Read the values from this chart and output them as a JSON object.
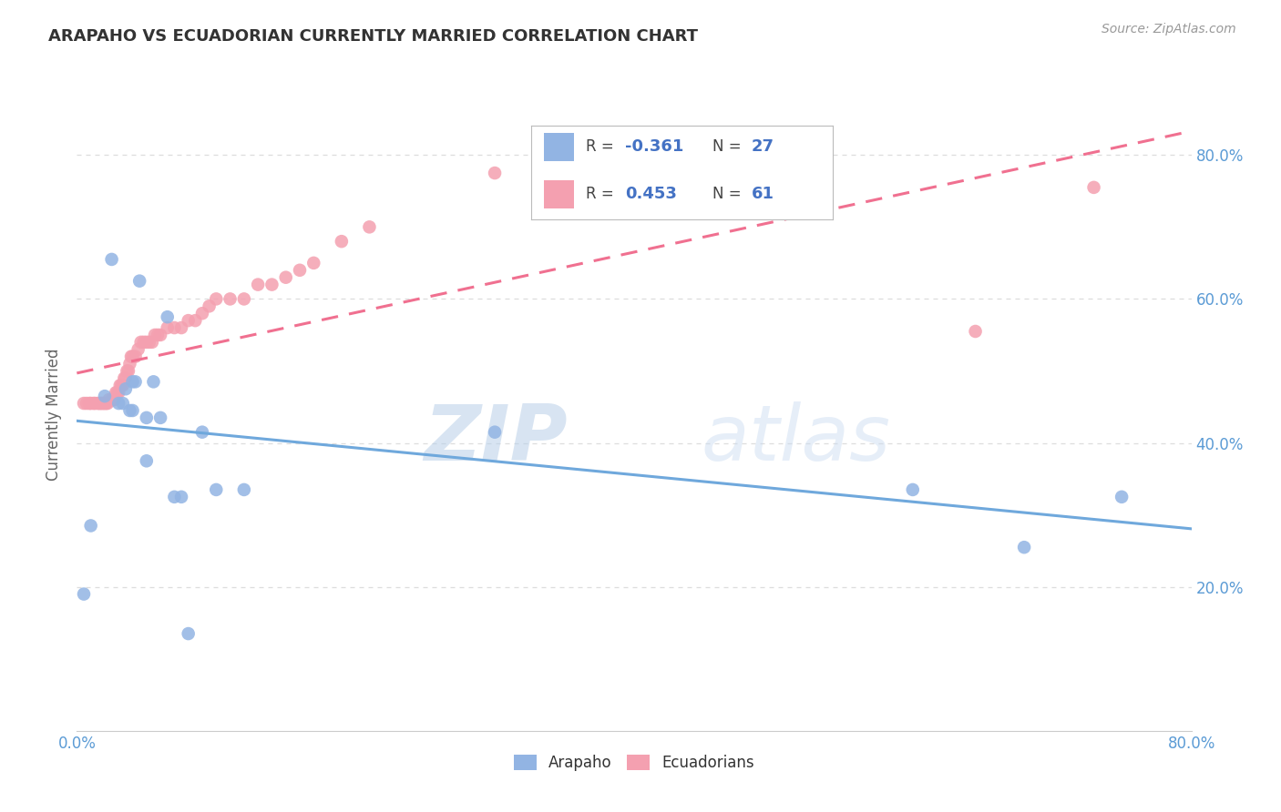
{
  "title": "ARAPAHO VS ECUADORIAN CURRENTLY MARRIED CORRELATION CHART",
  "source": "Source: ZipAtlas.com",
  "ylabel": "Currently Married",
  "xlim": [
    0.0,
    0.8
  ],
  "ylim": [
    0.0,
    0.88
  ],
  "x_ticks": [
    0.0,
    0.1,
    0.2,
    0.3,
    0.4,
    0.5,
    0.6,
    0.7,
    0.8
  ],
  "y_ticks": [
    0.2,
    0.4,
    0.6,
    0.8
  ],
  "y_tick_labels": [
    "20.0%",
    "40.0%",
    "60.0%",
    "80.0%"
  ],
  "arapaho_color": "#92b4e3",
  "ecuadorian_color": "#f4a0b0",
  "arapaho_line_color": "#6fa8dc",
  "ecuadorian_line_color": "#f07090",
  "legend_text_color": "#4472c4",
  "R_arapaho": -0.361,
  "N_arapaho": 27,
  "R_ecuadorian": 0.453,
  "N_ecuadorian": 61,
  "arapaho_x": [
    0.005,
    0.01,
    0.02,
    0.025,
    0.03,
    0.033,
    0.035,
    0.038,
    0.04,
    0.04,
    0.042,
    0.045,
    0.05,
    0.05,
    0.055,
    0.06,
    0.065,
    0.07,
    0.075,
    0.08,
    0.09,
    0.1,
    0.12,
    0.3,
    0.6,
    0.68,
    0.75
  ],
  "arapaho_y": [
    0.19,
    0.285,
    0.465,
    0.655,
    0.455,
    0.455,
    0.475,
    0.445,
    0.445,
    0.485,
    0.485,
    0.625,
    0.375,
    0.435,
    0.485,
    0.435,
    0.575,
    0.325,
    0.325,
    0.135,
    0.415,
    0.335,
    0.335,
    0.415,
    0.335,
    0.255,
    0.325
  ],
  "ecuadorian_x": [
    0.005,
    0.007,
    0.009,
    0.01,
    0.012,
    0.013,
    0.015,
    0.016,
    0.017,
    0.018,
    0.019,
    0.02,
    0.021,
    0.022,
    0.023,
    0.025,
    0.026,
    0.027,
    0.028,
    0.029,
    0.03,
    0.031,
    0.032,
    0.033,
    0.034,
    0.035,
    0.036,
    0.037,
    0.038,
    0.039,
    0.04,
    0.042,
    0.044,
    0.046,
    0.048,
    0.05,
    0.052,
    0.054,
    0.056,
    0.058,
    0.06,
    0.065,
    0.07,
    0.075,
    0.08,
    0.085,
    0.09,
    0.095,
    0.1,
    0.11,
    0.12,
    0.13,
    0.14,
    0.15,
    0.16,
    0.17,
    0.19,
    0.21,
    0.3,
    0.645,
    0.73
  ],
  "ecuadorian_y": [
    0.455,
    0.455,
    0.455,
    0.455,
    0.455,
    0.455,
    0.455,
    0.455,
    0.455,
    0.455,
    0.455,
    0.455,
    0.455,
    0.455,
    0.46,
    0.46,
    0.46,
    0.46,
    0.47,
    0.47,
    0.47,
    0.48,
    0.48,
    0.48,
    0.49,
    0.49,
    0.5,
    0.5,
    0.51,
    0.52,
    0.52,
    0.52,
    0.53,
    0.54,
    0.54,
    0.54,
    0.54,
    0.54,
    0.55,
    0.55,
    0.55,
    0.56,
    0.56,
    0.56,
    0.57,
    0.57,
    0.58,
    0.59,
    0.6,
    0.6,
    0.6,
    0.62,
    0.62,
    0.63,
    0.64,
    0.65,
    0.68,
    0.7,
    0.775,
    0.555,
    0.755
  ],
  "watermark_zip": "ZIP",
  "watermark_atlas": "atlas",
  "background_color": "#ffffff",
  "grid_color": "#dddddd"
}
